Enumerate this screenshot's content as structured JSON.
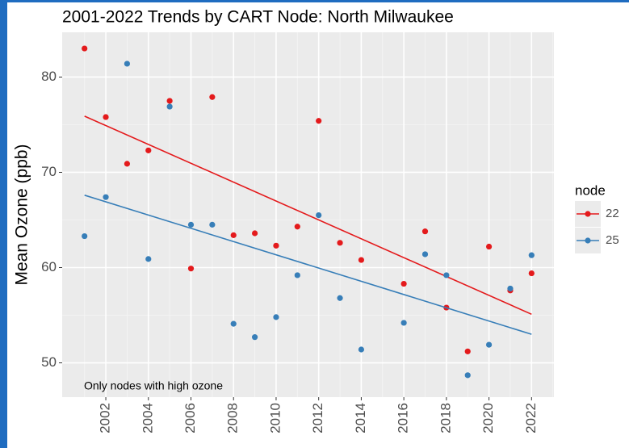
{
  "chart_data": {
    "type": "scatter",
    "title": "2001-2022 Trends by CART Node: North Milwaukee",
    "y_label": "Mean Ozone (ppb)",
    "annotation": "Only nodes with high ozone",
    "legend_title": "node",
    "legend": "right",
    "grid": true,
    "x": [
      2001,
      2002,
      2003,
      2004,
      2005,
      2006,
      2007,
      2008,
      2009,
      2010,
      2011,
      2012,
      2013,
      2014,
      2016,
      2017,
      2018,
      2019,
      2020,
      2021,
      2022
    ],
    "series": [
      {
        "name": "22",
        "color": "#e41a1c",
        "values": [
          83.0,
          75.8,
          70.9,
          72.3,
          77.5,
          59.9,
          77.9,
          63.4,
          63.6,
          62.3,
          64.3,
          75.4,
          62.6,
          60.8,
          58.3,
          63.8,
          55.8,
          51.2,
          62.2,
          57.6,
          59.4
        ],
        "trend": {
          "x": [
            2001,
            2022
          ],
          "values": [
            75.9,
            55.1
          ]
        }
      },
      {
        "name": "25",
        "color": "#377eb8",
        "values": [
          63.3,
          67.4,
          81.4,
          60.9,
          76.9,
          64.5,
          64.5,
          54.1,
          52.7,
          54.8,
          59.2,
          65.5,
          56.8,
          51.4,
          54.2,
          61.4,
          59.2,
          48.7,
          51.9,
          57.8,
          61.3
        ],
        "trend": {
          "x": [
            2001,
            2022
          ],
          "values": [
            67.6,
            53.0
          ]
        }
      }
    ],
    "xlim": [
      1999.95,
      2023.05
    ],
    "xticks": [
      2002,
      2004,
      2006,
      2008,
      2010,
      2012,
      2014,
      2016,
      2018,
      2020,
      2022
    ],
    "x_minor_grid": [
      2001,
      2003,
      2005,
      2007,
      2009,
      2011,
      2013,
      2015,
      2017,
      2019,
      2021,
      2023
    ],
    "ylim": [
      46.4,
      84.7
    ],
    "yticks": [
      50,
      60,
      70,
      80
    ],
    "y_minor_grid": [
      55,
      65,
      75
    ]
  }
}
